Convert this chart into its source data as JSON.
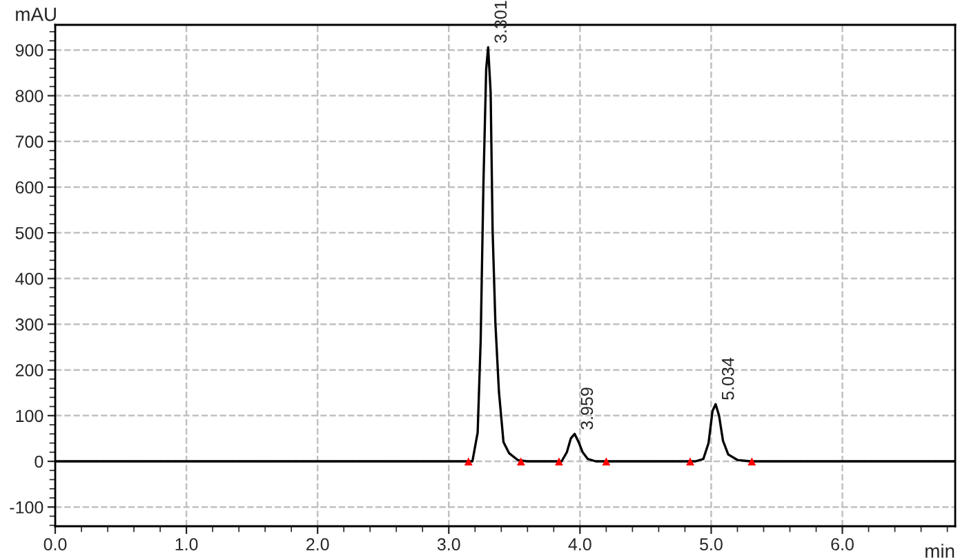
{
  "chart_data": {
    "type": "line",
    "xlabel": "min",
    "ylabel": "mAU",
    "series": [
      {
        "color": "#000000",
        "x": [
          0,
          3.1,
          3.18,
          3.22,
          3.243,
          3.264,
          3.285,
          3.3,
          3.319,
          3.334,
          3.355,
          3.382,
          3.417,
          3.459,
          3.525,
          3.6,
          3.86,
          3.9,
          3.93,
          3.959,
          3.99,
          4.02,
          4.06,
          4.12,
          4.88,
          4.94,
          4.98,
          5.01,
          5.034,
          5.06,
          5.09,
          5.13,
          5.2,
          5.3,
          6.86
        ],
        "values": [
          0,
          0,
          0,
          63,
          264,
          607,
          858,
          906,
          807,
          505,
          304,
          153,
          42,
          18,
          3,
          0,
          0,
          20,
          50,
          60,
          42,
          20,
          5,
          0,
          0,
          5,
          40,
          110,
          125,
          100,
          45,
          15,
          3,
          0,
          0
        ]
      },
      {
        "type": "scatter",
        "marker": "triangle",
        "color": "#ff0000",
        "x": [
          3.15,
          3.55,
          3.84,
          4.2,
          4.84,
          5.31
        ],
        "values": [
          0,
          0,
          0,
          0,
          0,
          0
        ]
      }
    ],
    "annotations": [
      {
        "text": "3.301",
        "x": 3.301,
        "y": 906
      },
      {
        "text": "3.959",
        "x": 3.959,
        "y": 60
      },
      {
        "text": "5.034",
        "x": 5.034,
        "y": 125
      }
    ],
    "xlim": [
      0,
      6.86
    ],
    "ylim": [
      -142,
      955
    ],
    "xticks": [
      {
        "value": 0,
        "label": "0.0"
      },
      {
        "value": 1,
        "label": "1.0"
      },
      {
        "value": 2,
        "label": "2.0"
      },
      {
        "value": 3,
        "label": "3.0"
      },
      {
        "value": 4,
        "label": "4.0"
      },
      {
        "value": 5,
        "label": "5.0"
      },
      {
        "value": 6,
        "label": "6.0"
      }
    ],
    "yticks": [
      -100,
      0,
      100,
      200,
      300,
      400,
      500,
      600,
      700,
      800,
      900
    ],
    "grid": true,
    "legend": false,
    "marker": "none",
    "line_style": "solid"
  }
}
